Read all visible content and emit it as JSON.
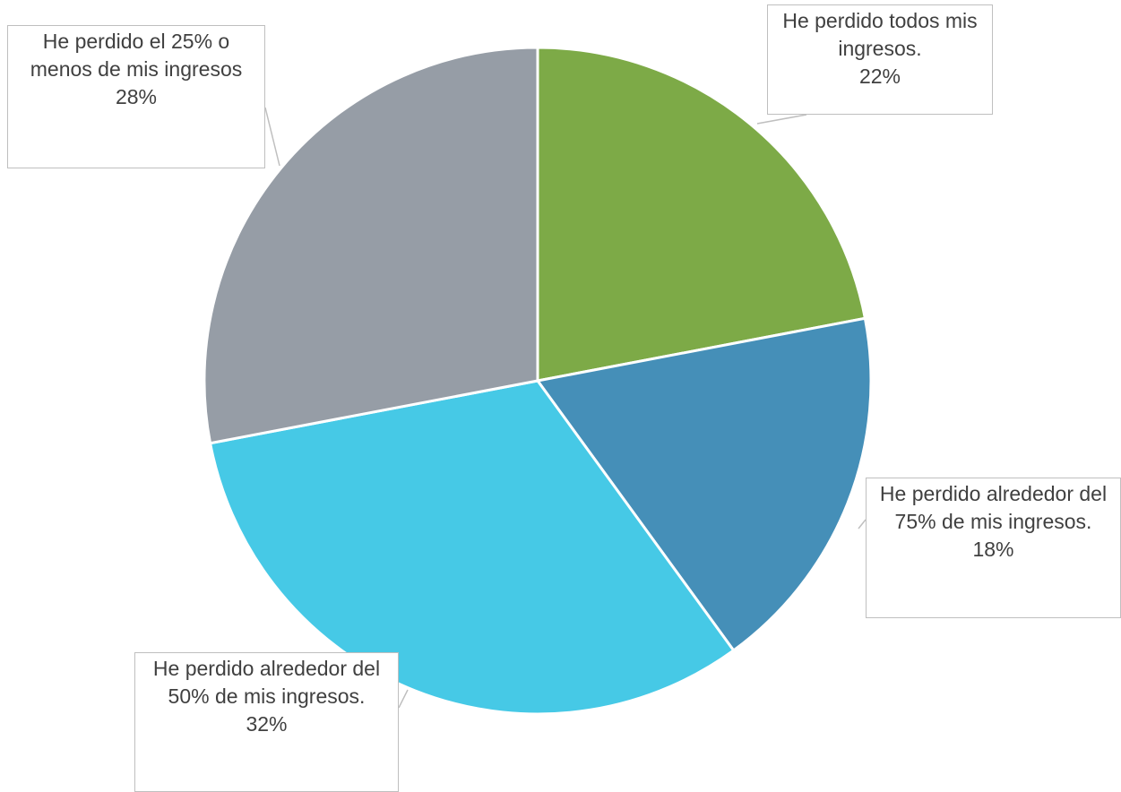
{
  "chart_data": {
    "type": "pie",
    "categories": [
      "He perdido todos mis ingresos.",
      "He perdido alrededor del 75% de mis ingresos.",
      "He perdido alrededor del 50% de mis ingresos.",
      "He perdido el 25% o menos de mis ingresos"
    ],
    "values": [
      22,
      18,
      32,
      28
    ],
    "value_labels": [
      "22%",
      "18%",
      "32%",
      "28%"
    ],
    "colors": [
      "#7daa47",
      "#458fb8",
      "#46c9e6",
      "#969da6"
    ]
  }
}
